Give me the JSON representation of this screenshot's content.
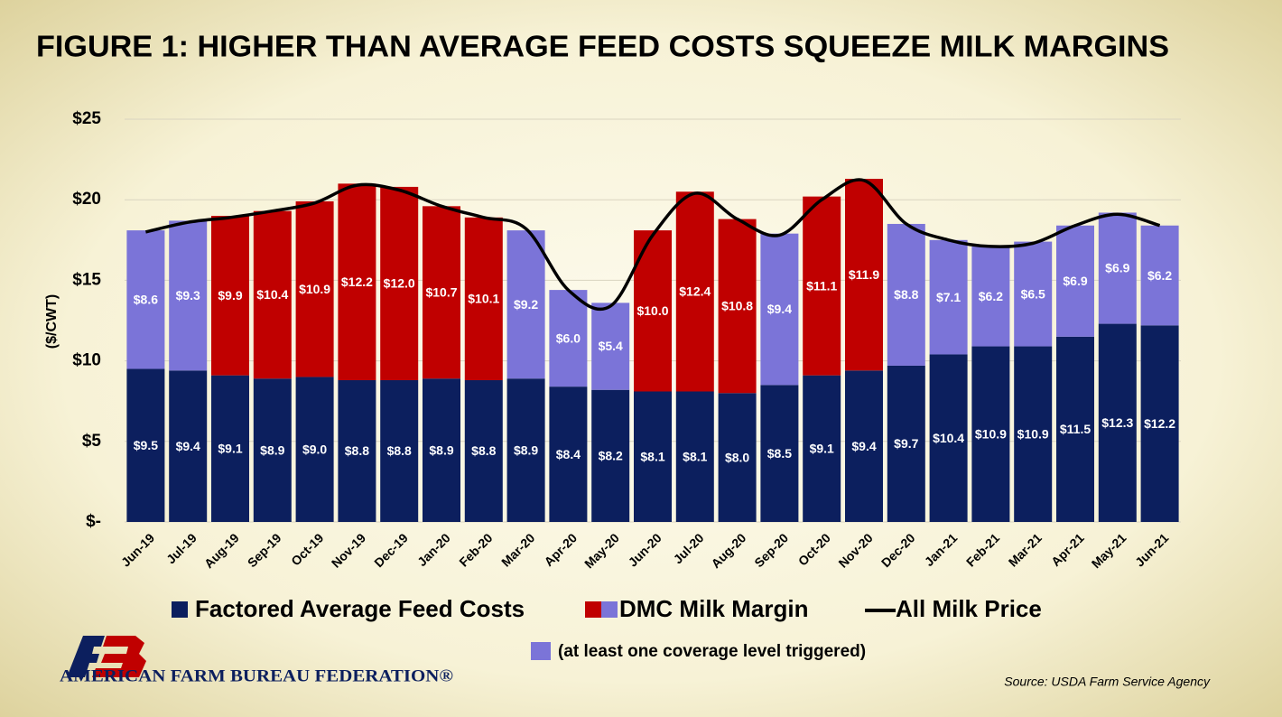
{
  "chart_data": {
    "type": "stacked-bar-line",
    "title": "FIGURE 1: HIGHER THAN AVERAGE FEED COSTS SQUEEZE MILK MARGINS",
    "y_label": "($/CWT)",
    "categories": [
      "Jun-19",
      "Jul-19",
      "Aug-19",
      "Sep-19",
      "Oct-19",
      "Nov-19",
      "Dec-19",
      "Jan-20",
      "Feb-20",
      "Mar-20",
      "Apr-20",
      "May-20",
      "Jun-20",
      "Jul-20",
      "Aug-20",
      "Sep-20",
      "Oct-20",
      "Nov-20",
      "Dec-20",
      "Jan-21",
      "Feb-21",
      "Mar-21",
      "Apr-21",
      "May-21",
      "Jun-21"
    ],
    "series": [
      {
        "name": "Factored Average Feed Costs",
        "color": "#0c1f5e",
        "values": [
          9.5,
          9.4,
          9.1,
          8.9,
          9.0,
          8.8,
          8.8,
          8.9,
          8.8,
          8.9,
          8.4,
          8.2,
          8.1,
          8.1,
          8.0,
          8.5,
          9.1,
          9.4,
          9.7,
          10.4,
          10.9,
          10.9,
          11.5,
          12.3,
          12.2
        ],
        "value_labels": [
          "$9.5",
          "$9.4",
          "$9.1",
          "$8.9",
          "$9.0",
          "$8.8",
          "$8.8",
          "$8.9",
          "$8.8",
          "$8.9",
          "$8.4",
          "$8.2",
          "$8.1",
          "$8.1",
          "$8.0",
          "$8.5",
          "$9.1",
          "$9.4",
          "$9.7",
          "$10.4",
          "$10.9",
          "$10.9",
          "$11.5",
          "$12.3",
          "$12.2"
        ]
      },
      {
        "name": "DMC Milk Margin",
        "color": "#c00000",
        "triggered_color": "#7b74d8",
        "values": [
          8.6,
          9.3,
          9.9,
          10.4,
          10.9,
          12.2,
          12.0,
          10.7,
          10.1,
          9.2,
          6.0,
          5.4,
          10.0,
          12.4,
          10.8,
          9.4,
          11.1,
          11.9,
          8.8,
          7.1,
          6.2,
          6.5,
          6.9,
          6.9,
          6.2
        ],
        "value_labels": [
          "$8.6",
          "$9.3",
          "$9.9",
          "$10.4",
          "$10.9",
          "$12.2",
          "$12.0",
          "$10.7",
          "$10.1",
          "$9.2",
          "$6.0",
          "$5.4",
          "$10.0",
          "$12.4",
          "$10.8",
          "$9.4",
          "$11.1",
          "$11.9",
          "$8.8",
          "$7.1",
          "$6.2",
          "$6.5",
          "$6.9",
          "$6.9",
          "$6.2"
        ],
        "colors": [
          "#7b74d8",
          "#7b74d8",
          "#c00000",
          "#c00000",
          "#c00000",
          "#c00000",
          "#c00000",
          "#c00000",
          "#c00000",
          "#7b74d8",
          "#7b74d8",
          "#7b74d8",
          "#c00000",
          "#c00000",
          "#c00000",
          "#7b74d8",
          "#c00000",
          "#c00000",
          "#7b74d8",
          "#7b74d8",
          "#7b74d8",
          "#7b74d8",
          "#7b74d8",
          "#7b74d8",
          "#7b74d8"
        ]
      },
      {
        "name": "All Milk Price",
        "color": "#000000",
        "type": "line",
        "values": [
          18.0,
          18.6,
          18.9,
          19.3,
          19.8,
          20.9,
          20.6,
          19.6,
          18.9,
          18.2,
          14.4,
          13.4,
          17.8,
          20.4,
          18.8,
          17.8,
          20.0,
          21.2,
          18.5,
          17.5,
          17.1,
          17.3,
          18.4,
          19.1,
          18.4
        ]
      }
    ],
    "legend_note": "(at least one coverage level triggered)",
    "ylim": [
      0,
      25
    ],
    "yticks": [
      {
        "value": 0,
        "label": "$-"
      },
      {
        "value": 5,
        "label": "$5"
      },
      {
        "value": 10,
        "label": "$10"
      },
      {
        "value": 15,
        "label": "$15"
      },
      {
        "value": 20,
        "label": "$20"
      },
      {
        "value": 25,
        "label": "$25"
      }
    ],
    "grid": true,
    "source": "Source: USDA Farm Service Agency",
    "logo_text": "AMERICAN FARM BUREAU FEDERATION®"
  }
}
